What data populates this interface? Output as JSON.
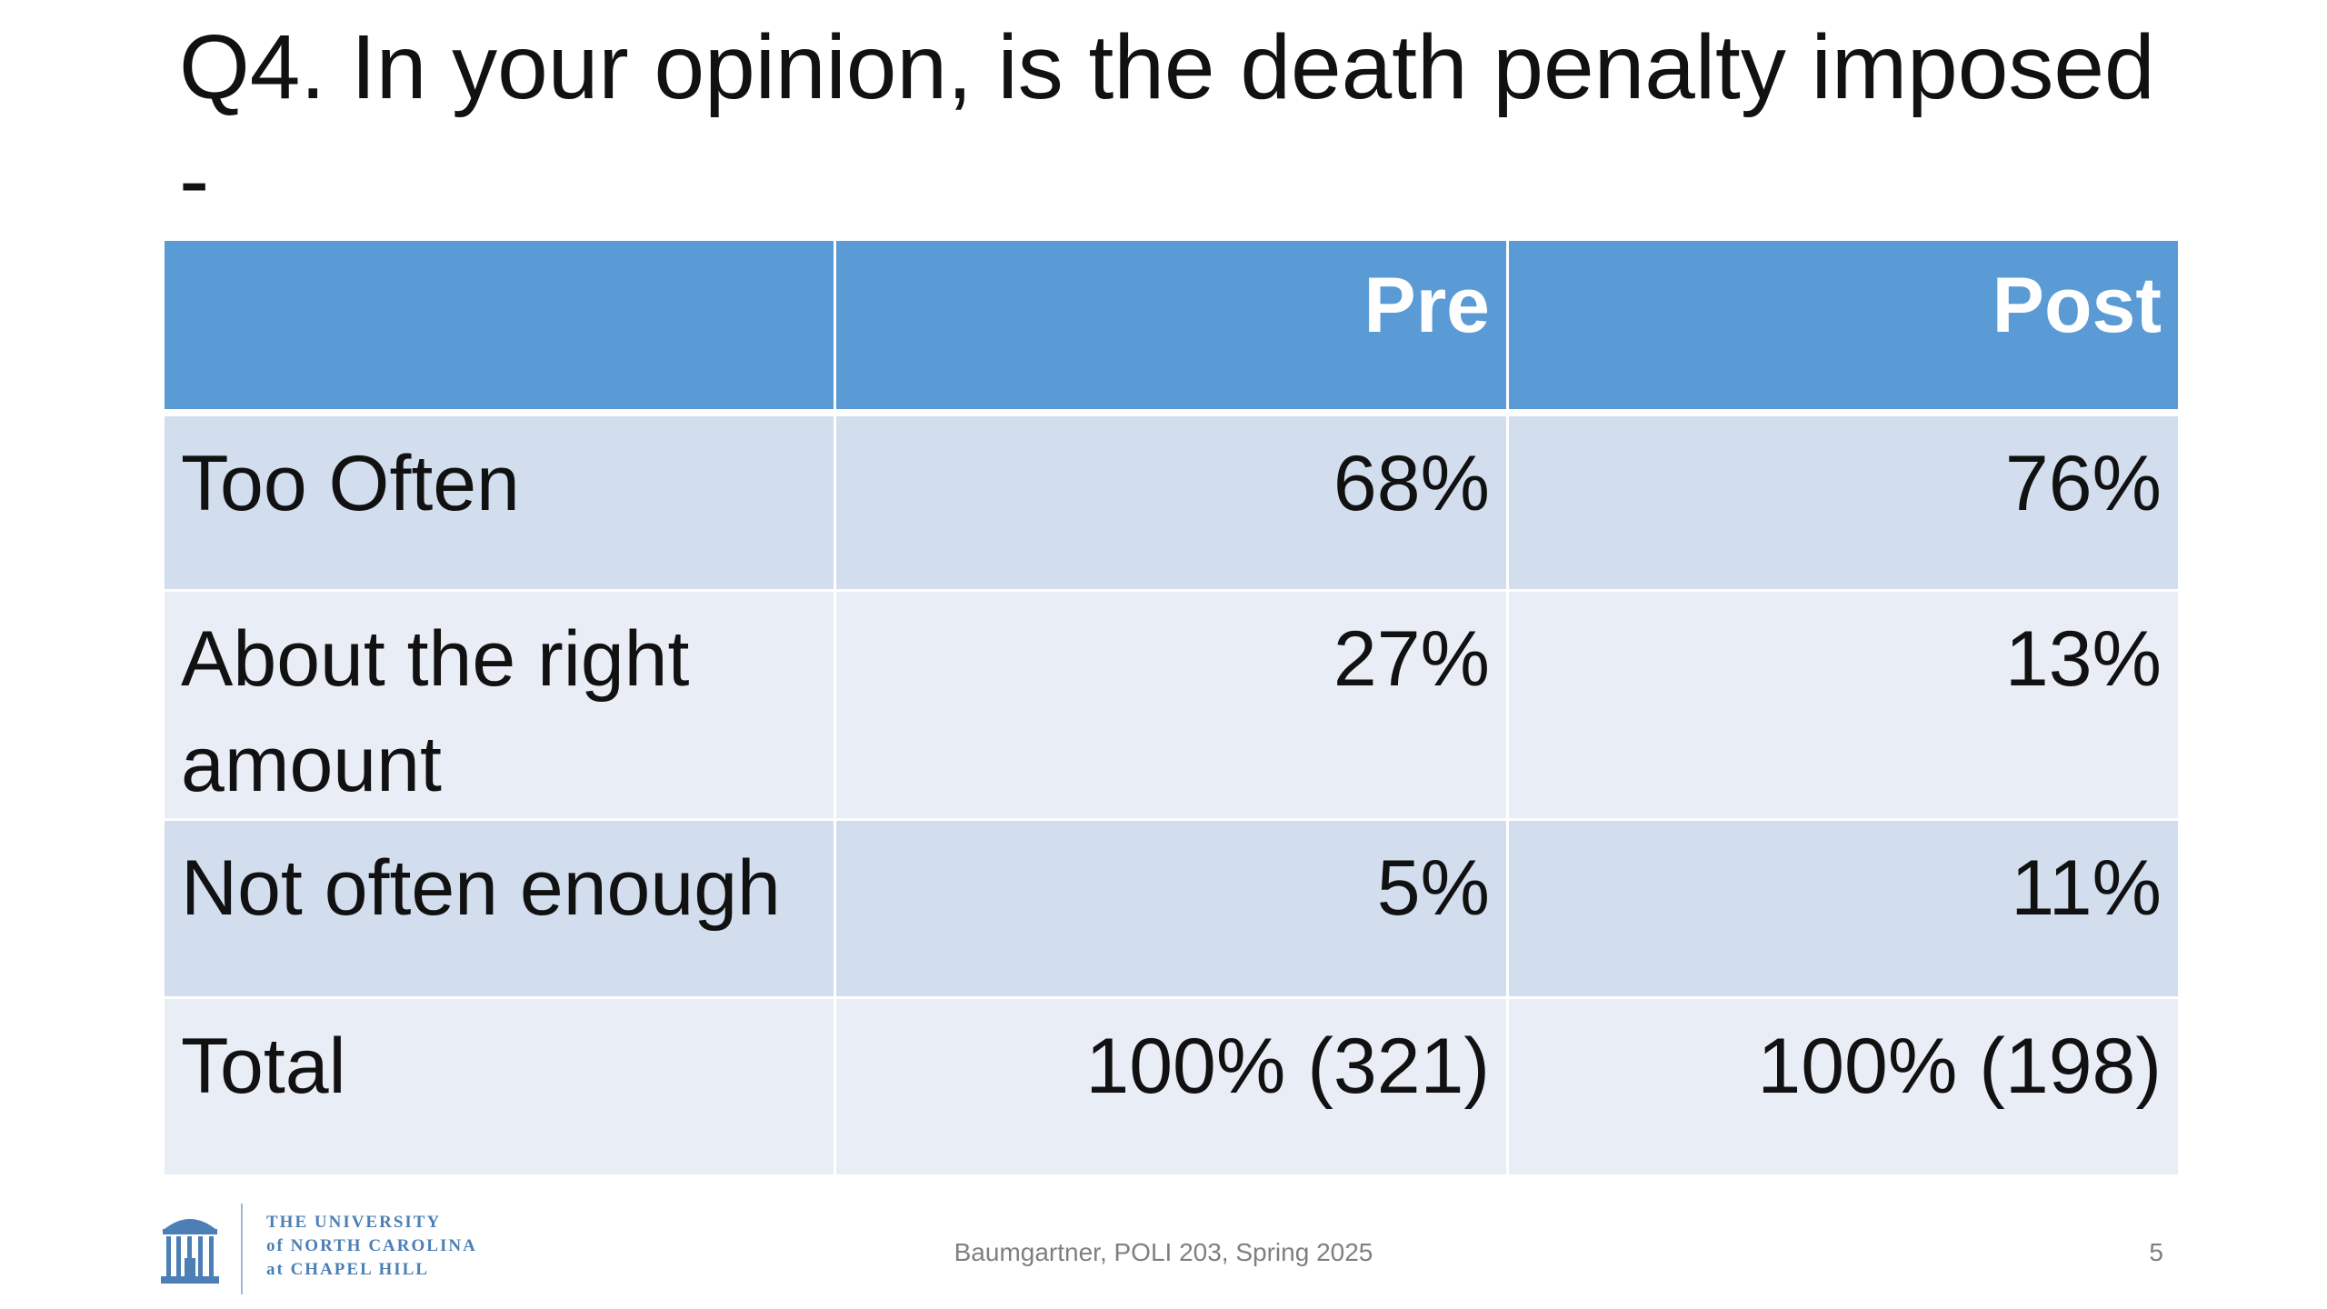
{
  "slide": {
    "title": "Q4. In your opinion, is the death penalty imposed -",
    "footer_text": "Baumgartner, POLI 203, Spring 2025",
    "slide_number": "5"
  },
  "logo": {
    "line1": "THE UNIVERSITY",
    "line2": "of NORTH CAROLINA",
    "line3": "at CHAPEL HILL"
  },
  "table": {
    "headers": [
      "",
      "Pre",
      "Post"
    ],
    "rows": [
      {
        "label": "Too Often",
        "pre": "68%",
        "post": "76%"
      },
      {
        "label": "About the right amount",
        "pre": "27%",
        "post": "13%"
      },
      {
        "label": "Not often enough",
        "pre": "5%",
        "post": "11%"
      },
      {
        "label": "Total",
        "pre": "100% (321)",
        "post": "100% (198)"
      }
    ]
  },
  "colors": {
    "header_bg": "#5b9bd5",
    "row_odd": "#d2ddee",
    "row_even": "#e9edf6",
    "logo_blue": "#4b7fb5"
  }
}
